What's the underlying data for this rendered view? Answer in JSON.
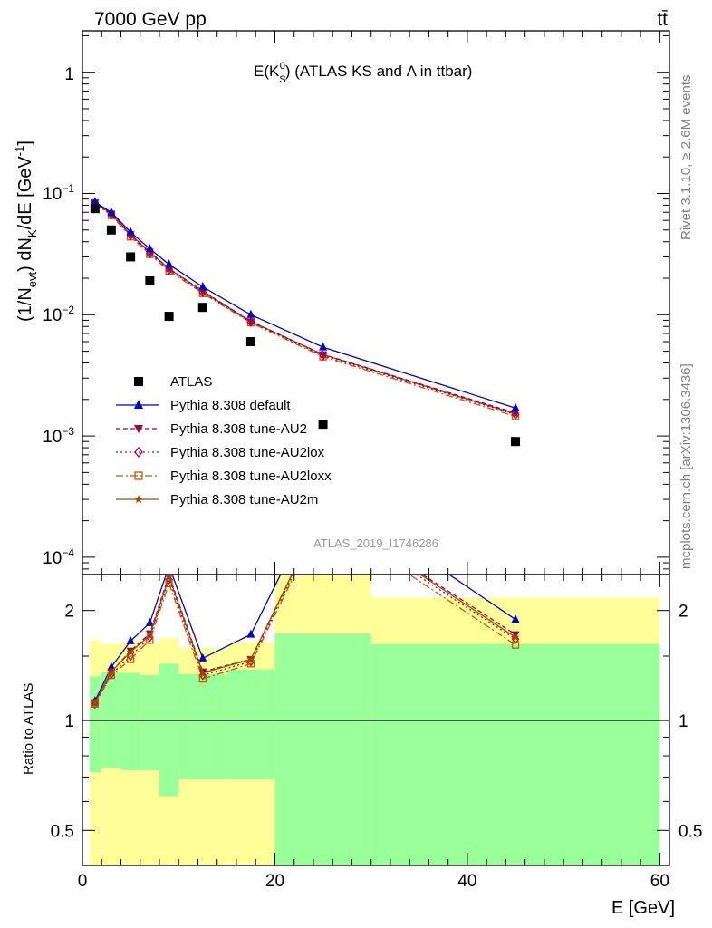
{
  "header": {
    "energy_label": "7000 GeV pp",
    "process_label": "tt̄"
  },
  "plot_title": {
    "main_prefix": "E(K",
    "main_sub": "S",
    "main_sup": "0",
    "main_suffix": ") (ATLAS KS and Λ in ttbar)"
  },
  "side_labels": {
    "rivet": "Rivet 3.1.10, ≥ 2.6M events",
    "mcplots": "mcplots.cern.ch [arXiv:1306.3436]"
  },
  "watermark": "ATLAS_2019_I1746286",
  "axes": {
    "ylabel_main": "(1/N_evt) dN_K/dE [GeV^-1]",
    "ylabel_ratio": "Ratio to ATLAS",
    "xlabel": "E [GeV]",
    "x_ticks": [
      "0",
      "20",
      "40",
      "60"
    ],
    "ratio_ticks": [
      "0.5",
      "1",
      "2"
    ]
  },
  "legend": [
    {
      "label": "ATLAS",
      "color": "#000000",
      "marker": "square",
      "dash": ""
    },
    {
      "label": "Pythia 8.308 default",
      "color": "#0000cc",
      "marker": "triangle-up",
      "dash": ""
    },
    {
      "label": "Pythia 8.308 tune-AU2",
      "color": "#99004d",
      "marker": "triangle-down",
      "dash": "5,3"
    },
    {
      "label": "Pythia 8.308 tune-AU2lox",
      "color": "#b3003c",
      "marker": "diamond-open",
      "dash": "2,3"
    },
    {
      "label": "Pythia 8.308 tune-AU2loxx",
      "color": "#cc5500",
      "marker": "square-open",
      "dash": "8,3,2,3"
    },
    {
      "label": "Pythia 8.308 tune-AU2m",
      "color": "#994d00",
      "marker": "star",
      "dash": ""
    }
  ],
  "chart_data": {
    "type": "scatter",
    "x_scale": "linear",
    "y_scale": "log",
    "xlim": [
      0,
      61
    ],
    "ylim": [
      7e-05,
      2.2
    ],
    "ratio_ylim": [
      0.35,
      2.35
    ],
    "bins": [
      {
        "lo": 0.75,
        "hi": 2.0,
        "x": 1.3
      },
      {
        "lo": 2.0,
        "hi": 4.0,
        "x": 3.0
      },
      {
        "lo": 4.0,
        "hi": 6.0,
        "x": 5.0
      },
      {
        "lo": 6.0,
        "hi": 8.0,
        "x": 7.0
      },
      {
        "lo": 8.0,
        "hi": 10.0,
        "x": 9.0
      },
      {
        "lo": 10.0,
        "hi": 15.0,
        "x": 12.5
      },
      {
        "lo": 15.0,
        "hi": 20.0,
        "x": 17.5
      },
      {
        "lo": 20.0,
        "hi": 30.0,
        "x": 25.0
      },
      {
        "lo": 30.0,
        "hi": 60.0,
        "x": 45.0
      }
    ],
    "data": {
      "name": "ATLAS",
      "x": [
        1.3,
        3.0,
        5.0,
        7.0,
        9.0,
        12.5,
        17.5,
        25.0,
        45.0
      ],
      "y": [
        0.075,
        0.05,
        0.03,
        0.019,
        0.0097,
        0.0115,
        0.006,
        0.00125,
        0.0009
      ]
    },
    "series": [
      {
        "name": "Pythia 8.308 default",
        "y": [
          0.085,
          0.07,
          0.048,
          0.035,
          0.026,
          0.017,
          0.01,
          0.0054,
          0.0017
        ]
      },
      {
        "name": "Pythia 8.308 tune-AU2",
        "y": [
          0.084,
          0.068,
          0.046,
          0.033,
          0.024,
          0.0157,
          0.0088,
          0.0047,
          0.00155
        ]
      },
      {
        "name": "Pythia 8.308 tune-AU2lox",
        "y": [
          0.083,
          0.067,
          0.045,
          0.032,
          0.0235,
          0.0153,
          0.0087,
          0.0046,
          0.0015
        ]
      },
      {
        "name": "Pythia 8.308 tune-AU2loxx",
        "y": [
          0.083,
          0.066,
          0.044,
          0.0315,
          0.023,
          0.015,
          0.0086,
          0.0045,
          0.00145
        ]
      },
      {
        "name": "Pythia 8.308 tune-AU2m",
        "y": [
          0.084,
          0.068,
          0.046,
          0.0325,
          0.024,
          0.0155,
          0.0088,
          0.0047,
          0.00152
        ]
      }
    ],
    "ratio": [
      {
        "name": "Pythia 8.308 default",
        "y": [
          1.13,
          1.4,
          1.65,
          1.85,
          2.65,
          1.48,
          1.72,
          4.3,
          1.89
        ]
      },
      {
        "name": "Pythia 8.308 tune-AU2",
        "y": [
          1.12,
          1.36,
          1.55,
          1.73,
          2.5,
          1.36,
          1.47,
          3.76,
          1.72
        ]
      },
      {
        "name": "Pythia 8.308 tune-AU2lox",
        "y": [
          1.11,
          1.34,
          1.5,
          1.69,
          2.43,
          1.33,
          1.45,
          3.68,
          1.67
        ]
      },
      {
        "name": "Pythia 8.308 tune-AU2loxx",
        "y": [
          1.11,
          1.33,
          1.47,
          1.66,
          2.37,
          1.3,
          1.43,
          3.6,
          1.61
        ]
      },
      {
        "name": "Pythia 8.308 tune-AU2m",
        "y": [
          1.12,
          1.36,
          1.54,
          1.71,
          2.47,
          1.35,
          1.47,
          3.76,
          1.69
        ]
      }
    ],
    "uncertainty_bands": {
      "stat_green_hi": [
        1.32,
        1.36,
        1.35,
        1.33,
        1.43,
        1.34,
        1.38,
        1.73,
        1.62
      ],
      "stat_green_lo": [
        0.72,
        0.74,
        0.73,
        0.73,
        0.62,
        0.69,
        0.69,
        0.35,
        0.35
      ],
      "total_yellow_hi": [
        1.66,
        1.62,
        1.64,
        1.63,
        1.68,
        1.58,
        1.64,
        2.6,
        2.17
      ],
      "total_yellow_lo": [
        0.36,
        0.35,
        0.35,
        0.34,
        0.34,
        0.36,
        0.34,
        0.34,
        0.36
      ]
    }
  }
}
